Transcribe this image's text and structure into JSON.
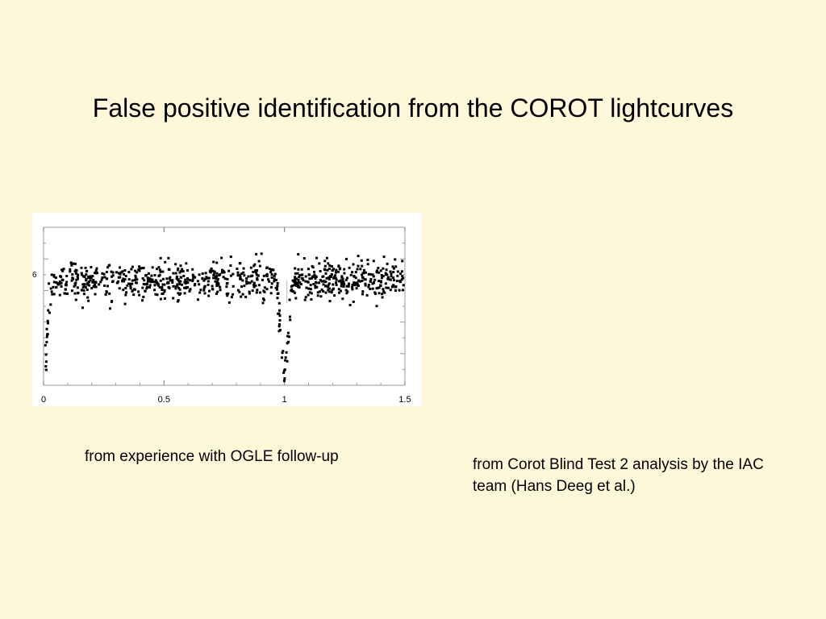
{
  "slide": {
    "title": "False positive identification from the COROT lightcurves",
    "background_color": "#fff7d9"
  },
  "captions": {
    "left": "from experience with OGLE follow-up",
    "right": "from Corot Blind Test 2 analysis by the IAC team (Hans Deeg et al.)"
  },
  "chart_data": {
    "type": "scatter",
    "title": "",
    "xlabel": "",
    "ylabel": "",
    "xlim": [
      0,
      1.5
    ],
    "x_ticks": [
      "0",
      "0.5",
      "1",
      "1.5"
    ],
    "x_tick_values": [
      0,
      0.5,
      1,
      1.5
    ],
    "y_tick_label_partial": "6",
    "grid": false,
    "baseline_level": 0.0,
    "baseline_scatter": 0.25,
    "eclipse_depth": 1.4,
    "eclipse_centers": [
      0.0,
      1.0
    ],
    "eclipse_half_width": 0.035,
    "marker_color": "#000000",
    "series": [
      {
        "points_description_values": {
          "n_points": 900
        }
      }
    ]
  }
}
